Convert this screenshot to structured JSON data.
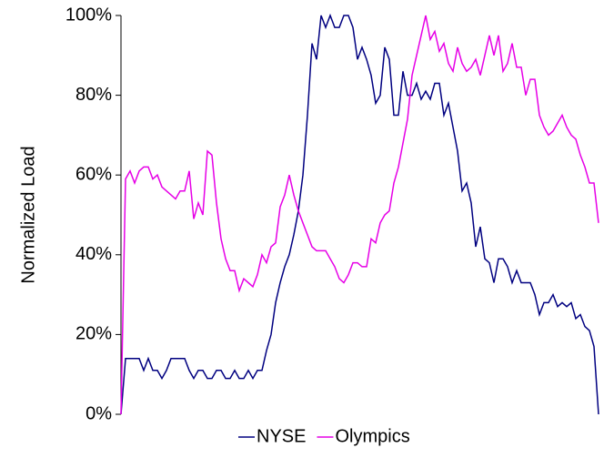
{
  "chart_data": {
    "type": "line",
    "y_label": "Normalized Load",
    "ylim": [
      0,
      100
    ],
    "yticks": [
      {
        "value": 0,
        "label": "0%"
      },
      {
        "value": 20,
        "label": "20%"
      },
      {
        "value": 40,
        "label": "40%"
      },
      {
        "value": 60,
        "label": "60%"
      },
      {
        "value": 80,
        "label": "80%"
      },
      {
        "value": 100,
        "label": "100%"
      }
    ],
    "legend": "bottom",
    "series": [
      {
        "name": "NYSE",
        "color": "#000080",
        "values": [
          0,
          14,
          14,
          14,
          14,
          11,
          14,
          11,
          11,
          9,
          11,
          14,
          14,
          14,
          14,
          11,
          9,
          11,
          11,
          9,
          9,
          11,
          11,
          9,
          9,
          11,
          9,
          9,
          11,
          9,
          11,
          11,
          16,
          20,
          28,
          33,
          37,
          40,
          45,
          51,
          60,
          75,
          93,
          89,
          100,
          97,
          100,
          97,
          97,
          100,
          100,
          97,
          89,
          92,
          89,
          85,
          78,
          80,
          92,
          89,
          75,
          75,
          86,
          80,
          80,
          83,
          79,
          81,
          79,
          83,
          83,
          75,
          78,
          72,
          66,
          56,
          58,
          53,
          42,
          47,
          39,
          38,
          33,
          39,
          39,
          37,
          33,
          36,
          33,
          33,
          33,
          30,
          25,
          28,
          28,
          30,
          27,
          28,
          27,
          28,
          24,
          25,
          22,
          21,
          17,
          0
        ]
      },
      {
        "name": "Olympics",
        "color": "#e600e6",
        "values": [
          0,
          59,
          61,
          58,
          61,
          62,
          62,
          59,
          60,
          57,
          56,
          55,
          54,
          56,
          56,
          61,
          49,
          53,
          50,
          66,
          65,
          53,
          44,
          39,
          36,
          36,
          31,
          34,
          33,
          32,
          35,
          40,
          38,
          42,
          43,
          52,
          55,
          60,
          55,
          51,
          48,
          45,
          42,
          41,
          41,
          41,
          39,
          37,
          34,
          33,
          35,
          38,
          38,
          37,
          37,
          44,
          43,
          48,
          50,
          51,
          58,
          62,
          68,
          74,
          85,
          90,
          95,
          100,
          94,
          96,
          91,
          93,
          88,
          86,
          92,
          88,
          86,
          87,
          89,
          85,
          90,
          95,
          90,
          95,
          86,
          88,
          93,
          87,
          87,
          80,
          84,
          84,
          75,
          72,
          70,
          71,
          73,
          75,
          72,
          70,
          69,
          65,
          62,
          58,
          58,
          48
        ]
      }
    ]
  }
}
